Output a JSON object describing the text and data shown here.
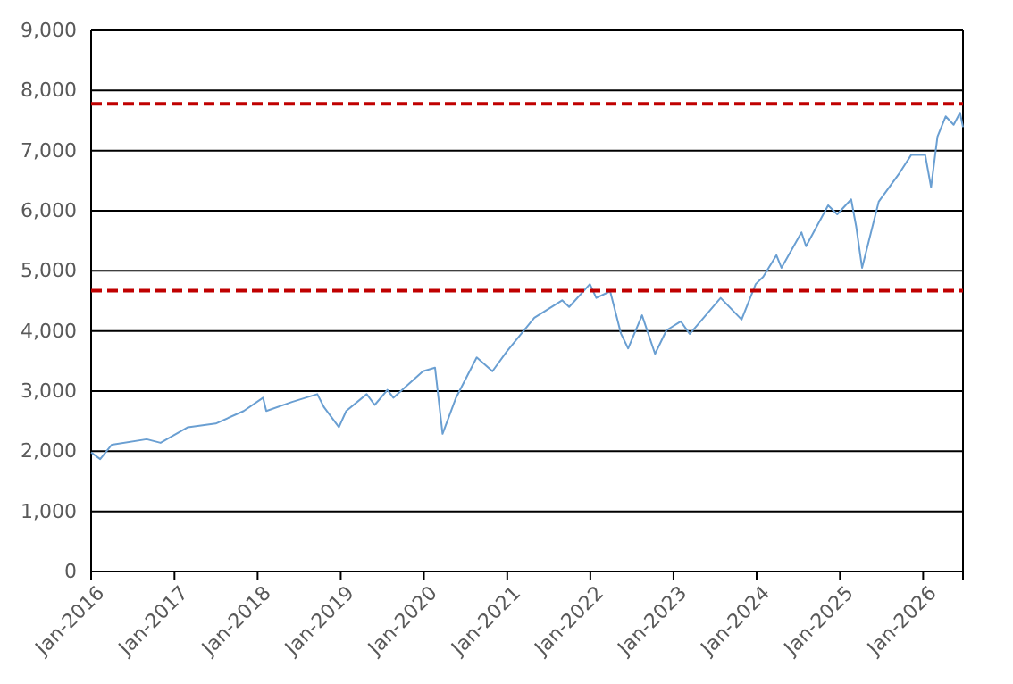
{
  "chart_data": {
    "type": "line",
    "grid": "y",
    "ylim": [
      0,
      9000
    ],
    "yticks": [
      0,
      {
        "value": 1000,
        "label": "1,000"
      },
      {
        "value": 2000,
        "label": "2,000"
      },
      {
        "value": 3000,
        "label": "3,000"
      },
      {
        "value": 4000,
        "label": "4,000"
      },
      {
        "value": 5000,
        "label": "5,000"
      },
      {
        "value": 6000,
        "label": "6,000"
      },
      {
        "value": 7000,
        "label": "7,000"
      },
      {
        "value": 8000,
        "label": "8,000"
      },
      {
        "value": 9000,
        "label": "9,000"
      }
    ],
    "xlim": [
      "2016-01-01",
      "2026-06-25"
    ],
    "xticks": [
      {
        "value": "2016-01-01",
        "label": "Jan-2016"
      },
      {
        "value": "2017-01-01",
        "label": "Jan-2017"
      },
      {
        "value": "2018-01-01",
        "label": "Jan-2018"
      },
      {
        "value": "2019-01-01",
        "label": "Jan-2019"
      },
      {
        "value": "2020-01-01",
        "label": "Jan-2020"
      },
      {
        "value": "2021-01-01",
        "label": "Jan-2021"
      },
      {
        "value": "2022-01-01",
        "label": "Jan-2022"
      },
      {
        "value": "2023-01-01",
        "label": "Jan-2023"
      },
      {
        "value": "2024-01-01",
        "label": "Jan-2024"
      },
      {
        "value": "2025-01-01",
        "label": "Jan-2025"
      },
      {
        "value": "2026-01-01",
        "label": "Jan-2026"
      }
    ],
    "ref_lines": [
      {
        "axis": "y",
        "value": 7780,
        "color": "#c00000",
        "line_style": "dashed"
      },
      {
        "axis": "y",
        "value": 4670,
        "color": "#c00000",
        "line_style": "dashed"
      }
    ],
    "series": [
      {
        "color": "#6a9fd2",
        "x": [
          "2016-01-01",
          "2016-02-10",
          "2016-04-01",
          "2016-09-01",
          "2016-11-01",
          "2017-03-01",
          "2017-07-01",
          "2017-11-01",
          "2018-01-25",
          "2018-02-08",
          "2018-06-01",
          "2018-09-20",
          "2018-10-20",
          "2018-12-24",
          "2019-01-25",
          "2019-04-25",
          "2019-05-30",
          "2019-07-25",
          "2019-08-20",
          "2019-12-28",
          "2020-02-19",
          "2020-03-23",
          "2020-05-20",
          "2020-08-20",
          "2020-10-28",
          "2020-12-30",
          "2021-04-30",
          "2021-08-30",
          "2021-09-30",
          "2021-12-30",
          "2022-01-27",
          "2022-03-29",
          "2022-05-15",
          "2022-06-16",
          "2022-08-16",
          "2022-10-12",
          "2022-12-01",
          "2023-02-02",
          "2023-03-13",
          "2023-07-27",
          "2023-10-27",
          "2023-12-28",
          "2024-01-30",
          "2024-03-28",
          "2024-04-19",
          "2024-07-16",
          "2024-08-05",
          "2024-11-10",
          "2024-12-20",
          "2025-02-19",
          "2025-03-13",
          "2025-04-08",
          "2025-06-20",
          "2025-09-20",
          "2025-11-10",
          "2026-01-10",
          "2026-02-05",
          "2026-03-05",
          "2026-04-10",
          "2026-05-15",
          "2026-06-12",
          "2026-06-25"
        ],
        "values": [
          1980,
          1870,
          2110,
          2200,
          2140,
          2400,
          2460,
          2670,
          2890,
          2670,
          2820,
          2950,
          2730,
          2400,
          2670,
          2950,
          2770,
          3020,
          2890,
          3330,
          3390,
          2290,
          2880,
          3560,
          3330,
          3660,
          4220,
          4510,
          4400,
          4780,
          4550,
          4660,
          3960,
          3710,
          4260,
          3620,
          4010,
          4160,
          3950,
          4550,
          4190,
          4780,
          4900,
          5260,
          5050,
          5640,
          5410,
          6090,
          5940,
          6190,
          5740,
          5050,
          6150,
          6630,
          6930,
          6930,
          6390,
          7230,
          7570,
          7430,
          7630,
          7390
        ]
      }
    ]
  }
}
